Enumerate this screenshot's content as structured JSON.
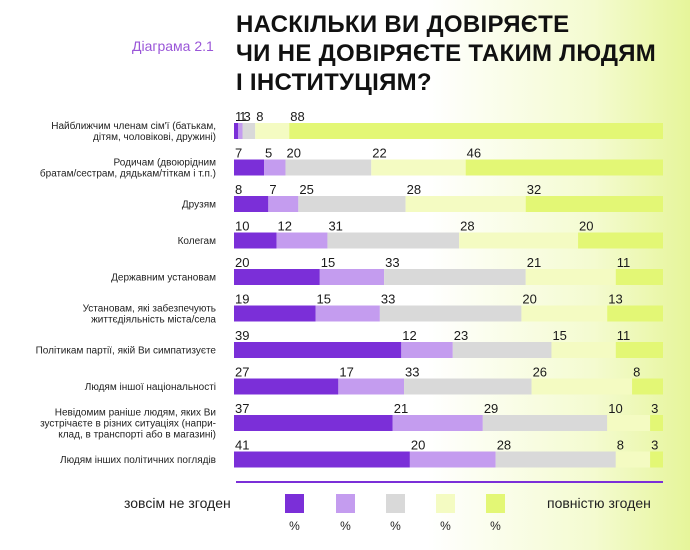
{
  "header": {
    "diagram_label": "Діаграма 2.1",
    "title_lines": [
      "НАСКІЛЬКИ ВИ ДОВІРЯЄТЕ",
      "ЧИ НЕ ДОВІРЯЄТЕ ТАКИМ ЛЮДЯМ",
      "І ІНСТИТУЦІЯМ?"
    ]
  },
  "colors": {
    "c1": "#7b2fd8",
    "c2": "#c49cef",
    "c3": "#d9d9d9",
    "c4": "#f4fbc2",
    "c5": "#e3f775"
  },
  "chart_data": {
    "type": "bar",
    "orientation": "horizontal-stacked",
    "units": "%",
    "categories": [
      [
        "Найближчим членам сім'ї (батькам,",
        "дітям, чоловікові, дружині)"
      ],
      [
        "Родичам (двоюрідним",
        "братам/сестрам, дядькам/тіткам і т.п.)"
      ],
      [
        "Друзям"
      ],
      [
        "Колегам"
      ],
      [
        "Державним установам"
      ],
      [
        "Установам, які забезпечують",
        "життєдіяльність міста/села"
      ],
      [
        "Політикам партії, якій Ви симпатизуєте"
      ],
      [
        "Людям іншої національності"
      ],
      [
        "Невідомим раніше людям, яких Ви",
        "зустрічаєте в різних ситуаціях (напри-",
        "клад, в транспорті або в магазині)"
      ],
      [
        "Людям інших політичних поглядів"
      ]
    ],
    "series": [
      {
        "name": "зовсім не згоден",
        "values": [
          1,
          7,
          8,
          10,
          20,
          19,
          39,
          27,
          37,
          41
        ]
      },
      {
        "name": "",
        "values": [
          1,
          5,
          7,
          12,
          15,
          15,
          12,
          17,
          21,
          20
        ]
      },
      {
        "name": "",
        "values": [
          3,
          20,
          25,
          31,
          33,
          33,
          23,
          33,
          29,
          28
        ]
      },
      {
        "name": "",
        "values": [
          8,
          22,
          28,
          28,
          21,
          20,
          15,
          26,
          10,
          8
        ]
      },
      {
        "name": "повністю згоден",
        "values": [
          88,
          46,
          32,
          20,
          11,
          13,
          11,
          8,
          3,
          3
        ]
      }
    ],
    "legend": {
      "left_label": "зовсім не згоден",
      "right_label": "повністю згоден",
      "unit_labels": [
        "%",
        "%",
        "%",
        "%",
        "%"
      ]
    }
  }
}
